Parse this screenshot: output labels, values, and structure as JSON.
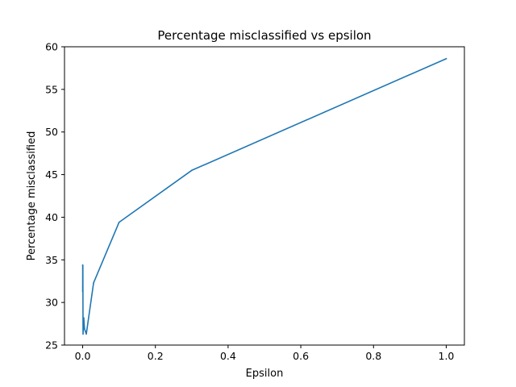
{
  "chart_data": {
    "type": "line",
    "title": "Percentage misclassified vs epsilon",
    "xlabel": "Epsilon",
    "ylabel": "Percentage misclassified",
    "xlim": [
      -0.05,
      1.05
    ],
    "ylim": [
      25,
      60
    ],
    "xticks": [
      0.0,
      0.2,
      0.4,
      0.6,
      0.8,
      1.0
    ],
    "xtick_labels": [
      "0.0",
      "0.2",
      "0.4",
      "0.6",
      "0.8",
      "1.0"
    ],
    "yticks": [
      25,
      30,
      35,
      40,
      45,
      50,
      55,
      60
    ],
    "ytick_labels": [
      "25",
      "30",
      "35",
      "40",
      "45",
      "50",
      "55",
      "60"
    ],
    "grid": false,
    "series": [
      {
        "color": "#1f77b4",
        "x": [
          0,
          0.0001,
          0.0003,
          0.0005,
          0.001,
          0.003,
          0.005,
          0.01,
          0.03,
          0.1,
          0.3,
          1.0
        ],
        "y": [
          31.3,
          34.4,
          31.8,
          34.3,
          26.3,
          28.2,
          26.9,
          26.3,
          32.3,
          39.4,
          45.5,
          58.6
        ]
      }
    ]
  }
}
